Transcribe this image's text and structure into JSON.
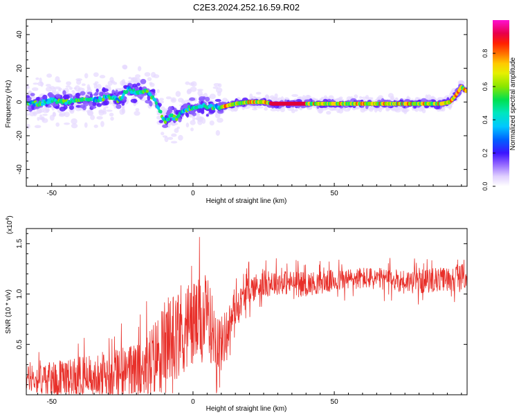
{
  "title": "C2E3.2024.252.16.59.R02",
  "colors": {
    "snr_line": "#e8302a",
    "axis": "#000000",
    "colormap": [
      "#ffffff",
      "#e6d9ff",
      "#9a6cff",
      "#4400ff",
      "#0050ff",
      "#00b0ff",
      "#00e6d0",
      "#00e070",
      "#5ae000",
      "#c8f000",
      "#ffe000",
      "#ff8800",
      "#ff2a00",
      "#e00050",
      "#ff00c8"
    ]
  },
  "chart_data": [
    {
      "type": "heatmap",
      "xlabel": "Height of straight line (km)",
      "ylabel": "Frequency (Hz)",
      "xlim": [
        -59,
        97
      ],
      "ylim": [
        -50,
        49
      ],
      "xticks": [
        -50,
        0,
        50
      ],
      "yticks": [
        -40,
        -20,
        0,
        20,
        40
      ],
      "colorbar": {
        "label": "Normalized spectral amplitude",
        "range": [
          0,
          1
        ],
        "ticks": [
          "0.0",
          "0.2",
          "0.4",
          "0.6",
          "0.8"
        ]
      },
      "ridge": {
        "x": [
          -59,
          -55,
          -50,
          -45,
          -40,
          -35,
          -30,
          -26,
          -23,
          -20,
          -17,
          -14,
          -12,
          -10,
          -8,
          -6,
          -4,
          -2,
          0,
          3,
          6,
          10,
          15,
          20,
          25,
          28,
          30,
          40,
          50,
          60,
          70,
          80,
          88,
          91,
          93,
          95,
          97
        ],
        "y": [
          0,
          -1,
          1,
          0,
          2,
          1,
          3,
          1,
          8,
          5,
          7,
          2,
          -4,
          -12,
          -8,
          -10,
          -6,
          -4,
          -3,
          -2,
          -3,
          -3,
          -1,
          0,
          0,
          -1,
          -1,
          -1,
          -1,
          -1,
          -1,
          -1,
          -1,
          0,
          4,
          9,
          6
        ]
      }
    },
    {
      "type": "line",
      "xlabel": "Height of straight line (km)",
      "ylabel": "SNR (10 * v/v)",
      "y_multiplier": "(x10",
      "y_multiplier_exp": "4",
      "xlim": [
        -59,
        97
      ],
      "ylim": [
        0,
        16500
      ],
      "xticks": [
        -50,
        0,
        50
      ],
      "yticks": [
        "0.5",
        "1.0",
        "1.5"
      ],
      "envelope": {
        "x": [
          -59,
          -50,
          -40,
          -30,
          -20,
          -15,
          -10,
          -5,
          0,
          5,
          10,
          15,
          20,
          25,
          30,
          40,
          50,
          60,
          70,
          80,
          90,
          97
        ],
        "y_mean": [
          1600,
          1500,
          1800,
          2000,
          2300,
          3200,
          5000,
          6500,
          7000,
          7500,
          5000,
          8500,
          10500,
          11000,
          11200,
          11000,
          11300,
          11600,
          11400,
          11200,
          11500,
          11800
        ],
        "y_spread": [
          1600,
          2200,
          2500,
          3000,
          3500,
          4500,
          5500,
          6000,
          5500,
          5000,
          3500,
          2000,
          1800,
          1700,
          1600,
          1500,
          1400,
          1400,
          1400,
          1500,
          1500,
          1600
        ]
      }
    }
  ]
}
